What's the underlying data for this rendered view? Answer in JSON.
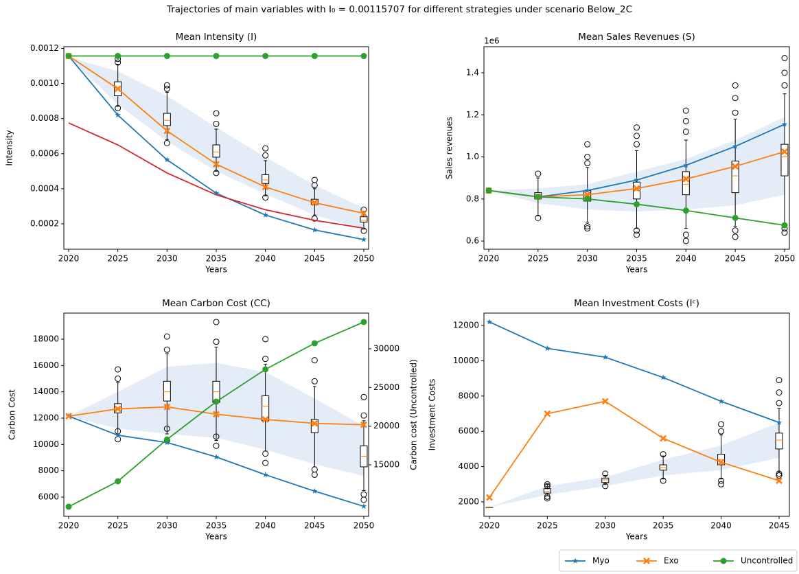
{
  "title": "Trajectories of main variables with I₀ = 0.00115707 for different strategies under scenario Below_2C",
  "legend": "lower right",
  "chart_data": [
    {
      "type": "line",
      "title": "Mean Intensity (I)",
      "xlabel": "Years",
      "ylabel": "Intensity",
      "x": [
        2020,
        2025,
        2030,
        2035,
        2040,
        2045,
        2050
      ],
      "xlim": [
        2019.51,
        2050.49
      ],
      "xticks": [
        2020,
        2025,
        2030,
        2035,
        2040,
        2045,
        2050
      ],
      "ylim": [
        5.5e-05,
        0.00121
      ],
      "yticks": [
        0.0002,
        0.0004,
        0.0006,
        0.0008,
        {
          "value": 0.001,
          "label": "0.0010"
        },
        0.0012
      ],
      "band": {
        "color": "#e3ecf7",
        "upper": [
          0.00115,
          0.00107,
          0.00093,
          0.00075,
          0.00058,
          0.00042,
          0.00029
        ],
        "lower": [
          0.00115,
          0.00088,
          0.00067,
          0.0005,
          0.00037,
          0.00025,
          0.00017
        ]
      },
      "boxes": [
        {
          "x": 2025,
          "whislo": 0.00087,
          "q1": 0.00093,
          "med": 0.00097,
          "q3": 0.00101,
          "whishi": 0.00111,
          "fliers": [
            0.00086,
            0.00112,
            0.00114
          ]
        },
        {
          "x": 2030,
          "whislo": 0.00068,
          "q1": 0.00076,
          "med": 0.00079,
          "q3": 0.00083,
          "whishi": 0.00095,
          "fliers": [
            0.00066,
            0.00097,
            0.00099
          ]
        },
        {
          "x": 2035,
          "whislo": 0.0005,
          "q1": 0.00058,
          "med": 0.00061,
          "q3": 0.00065,
          "whishi": 0.00074,
          "fliers": [
            0.00049,
            0.00077,
            0.00083
          ]
        },
        {
          "x": 2040,
          "whislo": 0.00036,
          "q1": 0.00043,
          "med": 0.00045,
          "q3": 0.00048,
          "whishi": 0.00056,
          "fliers": [
            0.00035,
            0.00059,
            0.00063
          ]
        },
        {
          "x": 2045,
          "whislo": 0.00025,
          "q1": 0.00031,
          "med": 0.00032,
          "q3": 0.00034,
          "whishi": 0.0004,
          "fliers": [
            0.00023,
            0.00042,
            0.00045
          ]
        },
        {
          "x": 2050,
          "whislo": 0.00017,
          "q1": 0.00021,
          "med": 0.00022,
          "q3": 0.00024,
          "whishi": 0.00027,
          "fliers": [
            0.00016,
            0.00028
          ]
        }
      ],
      "series": [
        {
          "name": "Myo",
          "color": "#1f77b4",
          "marker": "star",
          "values": [
            0.00115707,
            0.00082,
            0.000565,
            0.000375,
            0.00025,
            0.000165,
            0.00011
          ]
        },
        {
          "name": "Exo",
          "color": "#ff7f0e",
          "marker": "x",
          "values": [
            0.00115707,
            0.00097,
            0.00073,
            0.00054,
            0.00041,
            0.00032,
            0.00026
          ]
        },
        {
          "name": "Uncontrolled",
          "color": "#2ca02c",
          "marker": "o",
          "values": [
            0.00115707,
            0.00115707,
            0.00115707,
            0.00115707,
            0.00115707,
            0.00115707,
            0.00115707
          ]
        },
        {
          "color": "#d62728",
          "values": [
            0.000775,
            0.00065,
            0.00049,
            0.000365,
            0.00028,
            0.00022,
            0.000175
          ]
        }
      ]
    },
    {
      "type": "line",
      "title": "Mean Sales Revenues (S)",
      "xlabel": "Years",
      "ylabel": "Sales revenues",
      "offset_label": "1e6",
      "x": [
        2020,
        2025,
        2030,
        2035,
        2040,
        2045,
        2050
      ],
      "xlim": [
        2019.51,
        2050.49
      ],
      "xticks": [
        2020,
        2025,
        2030,
        2035,
        2040,
        2045,
        2050
      ],
      "ylim": [
        0.561,
        1.524
      ],
      "yticks": [
        0.6,
        0.8,
        {
          "value": 1,
          "label": "1.0"
        },
        1.2,
        1.4
      ],
      "band": {
        "color": "#e3ecf7",
        "upper": [
          0.84,
          0.85,
          0.87,
          0.93,
          0.99,
          1.08,
          1.19
        ],
        "lower": [
          0.84,
          0.78,
          0.75,
          0.74,
          0.75,
          0.77,
          0.82
        ]
      },
      "boxes": [
        {
          "x": 2025,
          "whislo": 0.72,
          "q1": 0.8,
          "med": 0.81,
          "q3": 0.83,
          "whishi": 0.9,
          "fliers": [
            0.71,
            0.92
          ]
        },
        {
          "x": 2030,
          "whislo": 0.69,
          "q1": 0.79,
          "med": 0.82,
          "q3": 0.84,
          "whishi": 0.95,
          "fliers": [
            0.66,
            0.67,
            0.97,
            1.0,
            1.06
          ]
        },
        {
          "x": 2035,
          "whislo": 0.66,
          "q1": 0.8,
          "med": 0.84,
          "q3": 0.88,
          "whishi": 1.03,
          "fliers": [
            0.63,
            0.65,
            1.06,
            1.1,
            1.14
          ]
        },
        {
          "x": 2040,
          "whislo": 0.66,
          "q1": 0.82,
          "med": 0.87,
          "q3": 0.93,
          "whishi": 1.08,
          "fliers": [
            0.6,
            0.63,
            1.12,
            1.17,
            1.22
          ]
        },
        {
          "x": 2045,
          "whislo": 0.67,
          "q1": 0.83,
          "med": 0.91,
          "q3": 0.98,
          "whishi": 1.18,
          "fliers": [
            0.62,
            0.65,
            1.21,
            1.28,
            1.34
          ]
        },
        {
          "x": 2050,
          "whislo": 0.68,
          "q1": 0.91,
          "med": 1.0,
          "q3": 1.06,
          "whishi": 1.3,
          "fliers": [
            0.64,
            0.66,
            1.34,
            1.4,
            1.47
          ]
        }
      ],
      "series": [
        {
          "name": "Myo",
          "color": "#1f77b4",
          "marker": "star",
          "values": [
            0.84,
            0.81,
            0.84,
            0.89,
            0.96,
            1.05,
            1.155
          ]
        },
        {
          "name": "Exo",
          "color": "#ff7f0e",
          "marker": "x",
          "values": [
            0.84,
            0.81,
            0.82,
            0.85,
            0.895,
            0.955,
            1.025
          ]
        },
        {
          "name": "Uncontrolled",
          "color": "#2ca02c",
          "marker": "o",
          "values": [
            0.84,
            0.81,
            0.8,
            0.775,
            0.745,
            0.71,
            0.675
          ]
        }
      ]
    },
    {
      "type": "line",
      "title": "Mean Carbon Cost (CC)",
      "xlabel": "Years",
      "ylabel": "Carbon Cost",
      "y2label": "Carbon cost (Uncontrolled)",
      "x": [
        2020,
        2025,
        2030,
        2035,
        2040,
        2045,
        2050
      ],
      "xlim": [
        2019.51,
        2050.49
      ],
      "xticks": [
        2020,
        2025,
        2030,
        2035,
        2040,
        2045,
        2050
      ],
      "ylim": [
        4540,
        19980
      ],
      "yticks": [
        6000,
        8000,
        10000,
        12000,
        14000,
        16000,
        18000
      ],
      "y2lim": [
        8343,
        34615
      ],
      "y2ticks": [
        15000,
        20000,
        25000,
        30000
      ],
      "band": {
        "color": "#e3ecf7",
        "upper": [
          12150,
          14000,
          15900,
          16200,
          15500,
          13500,
          11400
        ],
        "lower": [
          12150,
          11200,
          10800,
          10500,
          9600,
          8500,
          7600
        ]
      },
      "boxes": [
        {
          "x": 2025,
          "whislo": 10700,
          "q1": 12400,
          "med": 12700,
          "q3": 13100,
          "whishi": 14700,
          "fliers": [
            10400,
            11000,
            15000,
            15700
          ]
        },
        {
          "x": 2030,
          "whislo": 10800,
          "q1": 13300,
          "med": 14000,
          "q3": 14800,
          "whishi": 16900,
          "fliers": [
            10300,
            11200,
            17200,
            18200
          ]
        },
        {
          "x": 2035,
          "whislo": 10300,
          "q1": 13200,
          "med": 14000,
          "q3": 14800,
          "whishi": 17400,
          "fliers": [
            9900,
            10600,
            17800,
            19300
          ]
        },
        {
          "x": 2040,
          "whislo": 9500,
          "q1": 11800,
          "med": 12900,
          "q3": 13700,
          "whishi": 16100,
          "fliers": [
            8600,
            9300,
            16500,
            18000
          ]
        },
        {
          "x": 2045,
          "whislo": 8300,
          "q1": 10900,
          "med": 11500,
          "q3": 11900,
          "whishi": 14400,
          "fliers": [
            7700,
            8100,
            14800,
            16400
          ]
        },
        {
          "x": 2050,
          "whislo": 6500,
          "q1": 8300,
          "med": 9100,
          "q3": 9900,
          "whishi": 11800,
          "fliers": [
            5800,
            6200,
            12200,
            13600
          ]
        }
      ],
      "series": [
        {
          "name": "Myo",
          "color": "#1f77b4",
          "marker": "star",
          "values": [
            12150,
            10700,
            10150,
            9050,
            7700,
            6450,
            5300
          ]
        },
        {
          "name": "Exo",
          "color": "#ff7f0e",
          "marker": "x",
          "values": [
            12150,
            12700,
            12850,
            12300,
            11900,
            11600,
            11500
          ]
        },
        {
          "name": "Uncontrolled",
          "color": "#2ca02c",
          "marker": "o",
          "axis": "y2",
          "values": [
            9586,
            12870,
            18284,
            23166,
            27338,
            30710,
            33462
          ]
        }
      ]
    },
    {
      "type": "line",
      "title": "Mean Investment Costs (Iᶜ)",
      "xlabel": "Years",
      "ylabel": "Investment Costs",
      "x": [
        2020,
        2025,
        2030,
        2035,
        2040,
        2045
      ],
      "xlim": [
        2019.53,
        2045.89
      ],
      "xticks": [
        2020,
        2025,
        2030,
        2035,
        2040,
        2045
      ],
      "ylim": [
        1183,
        12700
      ],
      "yticks": [
        2000,
        4000,
        6000,
        8000,
        10000,
        12000
      ],
      "band": {
        "color": "#e3ecf7",
        "upper": [
          1700,
          2900,
          3400,
          4400,
          5200,
          6500
        ],
        "lower": [
          1700,
          2400,
          2900,
          3500,
          3800,
          4500
        ]
      },
      "boxes": [
        {
          "x": 2020,
          "whislo": 1700,
          "q1": 1700,
          "med": 1700,
          "q3": 1700,
          "whishi": 1700,
          "fliers": []
        },
        {
          "x": 2025,
          "whislo": 2350,
          "q1": 2500,
          "med": 2600,
          "q3": 2750,
          "whishi": 3000,
          "fliers": [
            2200,
            2300,
            2900,
            3000
          ]
        },
        {
          "x": 2030,
          "whislo": 3000,
          "q1": 3100,
          "med": 3250,
          "q3": 3350,
          "whishi": 3500,
          "fliers": [
            2900,
            3600
          ]
        },
        {
          "x": 2035,
          "whislo": 3300,
          "q1": 3800,
          "med": 3950,
          "q3": 4100,
          "whishi": 4600,
          "fliers": [
            3200,
            4700
          ]
        },
        {
          "x": 2040,
          "whislo": 3300,
          "q1": 4100,
          "med": 4400,
          "q3": 4700,
          "whishi": 5800,
          "fliers": [
            3000,
            3200,
            6000,
            6400
          ]
        },
        {
          "x": 2045,
          "whislo": 3700,
          "q1": 5000,
          "med": 5500,
          "q3": 5900,
          "whishi": 7300,
          "fliers": [
            3500,
            3600,
            7600,
            8200,
            8900
          ]
        }
      ],
      "series": [
        {
          "name": "Myo",
          "color": "#1f77b4",
          "marker": "star",
          "values": [
            12200,
            10700,
            10200,
            9050,
            7700,
            6500
          ]
        },
        {
          "name": "Exo",
          "color": "#ff7f0e",
          "marker": "x",
          "values": [
            2250,
            7000,
            7700,
            5600,
            4250,
            3200
          ]
        }
      ]
    }
  ]
}
